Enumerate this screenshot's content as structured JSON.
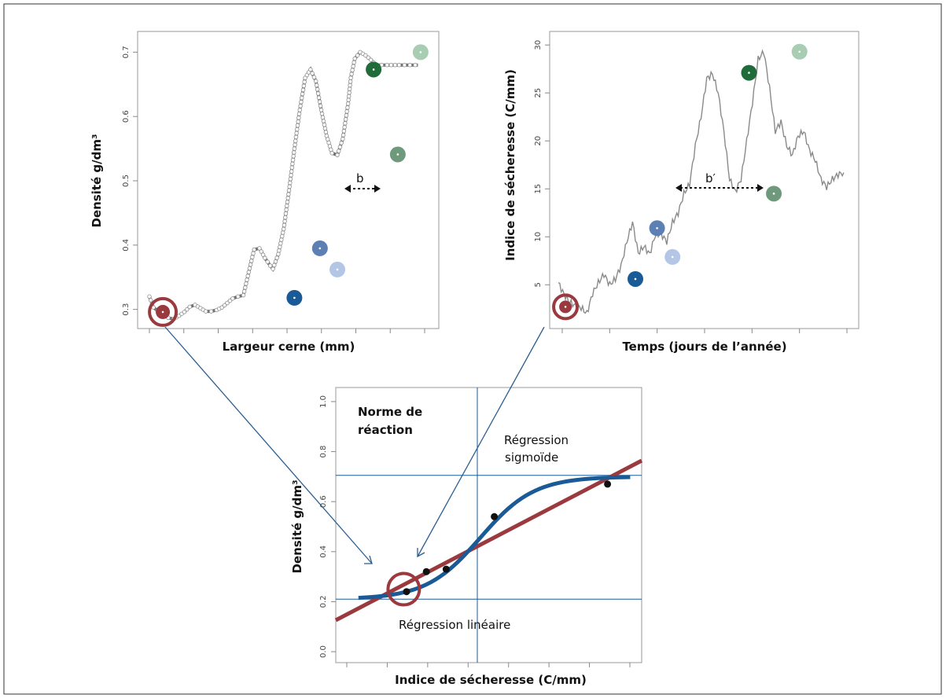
{
  "colors": {
    "red": "#9b3a3e",
    "blue_dark": "#1a5a96",
    "blue_mid": "#5c7fb4",
    "blue_light": "#b3c6e6",
    "green_dark": "#1f6b3a",
    "green_mid": "#6e9a7b",
    "green_light": "#a9cdb2",
    "curve_gray": "#7a7a7a",
    "arrow_blue": "#2c5e91"
  },
  "chart_data": [
    {
      "type": "line",
      "xlabel": "Largeur cerne (mm)",
      "ylabel": "Densité g/dm³",
      "ylim": [
        0.28,
        0.72
      ],
      "yticks": [
        "0.3",
        "0.4",
        "0.5",
        "0.6",
        "0.7"
      ],
      "x_ticks_count": 9,
      "x": [
        0,
        0.3,
        0.6,
        1,
        1.4,
        1.8,
        2.2,
        2.6,
        3,
        3.4,
        3.8,
        4.2,
        4.6,
        5,
        5.4,
        5.8,
        6.2,
        6.6,
        7,
        7.4,
        7.8,
        8.2,
        8.6,
        9,
        9.2,
        9.6,
        10,
        10.4,
        10.8,
        11.2,
        11.6,
        12,
        12.4,
        12.8,
        13.2,
        13.6,
        14,
        14.4,
        14.8,
        15,
        15.3,
        15.7,
        16.1,
        16.5,
        16.9,
        17.3,
        17.7,
        18,
        18.3,
        18.6,
        19,
        19.4,
        19.8,
        20
      ],
      "y": [
        0.32,
        0.303,
        0.298,
        0.292,
        0.287,
        0.285,
        0.29,
        0.296,
        0.304,
        0.307,
        0.302,
        0.297,
        0.297,
        0.299,
        0.303,
        0.31,
        0.317,
        0.32,
        0.322,
        0.358,
        0.393,
        0.395,
        0.38,
        0.368,
        0.363,
        0.386,
        0.425,
        0.485,
        0.55,
        0.61,
        0.66,
        0.673,
        0.655,
        0.61,
        0.57,
        0.543,
        0.54,
        0.565,
        0.62,
        0.66,
        0.69,
        0.7,
        0.695,
        0.688,
        0.68,
        0.68,
        0.68,
        0.68,
        0.68,
        0.68,
        0.68,
        0.68,
        0.68,
        0.68
      ],
      "highlight_points": [
        {
          "x": 1.0,
          "y": 0.296,
          "color": "red"
        },
        {
          "x": 10.8,
          "y": 0.318,
          "color": "blue_dark"
        },
        {
          "x": 12.7,
          "y": 0.395,
          "color": "blue_mid"
        },
        {
          "x": 14.0,
          "y": 0.362,
          "color": "blue_light"
        },
        {
          "x": 16.7,
          "y": 0.673,
          "color": "green_dark"
        },
        {
          "x": 18.5,
          "y": 0.541,
          "color": "green_mid"
        },
        {
          "x": 20.2,
          "y": 0.7,
          "color": "green_light"
        }
      ],
      "annotation": "b"
    },
    {
      "type": "line",
      "xlabel": "Temps (jours de l’année)",
      "ylabel": "Indice de sécheresse (C/mm)",
      "ylim": [
        1.5,
        31
      ],
      "yticks": [
        "5",
        "10",
        "15",
        "20",
        "25",
        "30"
      ],
      "x_ticks_count": 7,
      "x": [
        0,
        2,
        4,
        6,
        8,
        10,
        12,
        14,
        16,
        18,
        20,
        22,
        24,
        26,
        28,
        30,
        32,
        34,
        36,
        38,
        40,
        42,
        44,
        46,
        48,
        50,
        52,
        54,
        56,
        58,
        60,
        62,
        64,
        66,
        68,
        70,
        72,
        74,
        76,
        78,
        80,
        82,
        84,
        86,
        88,
        90,
        92,
        94,
        96,
        98,
        100
      ],
      "y": [
        5.2,
        4,
        3.2,
        2.8,
        2.6,
        2,
        4.1,
        5.2,
        6.1,
        5,
        5.6,
        7,
        9.5,
        11.5,
        8.3,
        9,
        8.2,
        10.2,
        10.3,
        9.5,
        11.5,
        12.5,
        14.5,
        15.5,
        19.5,
        22.5,
        26.5,
        27,
        25,
        21,
        16,
        14.7,
        16,
        20,
        24,
        28.5,
        29.3,
        25.5,
        21,
        22,
        19.5,
        18.5,
        20.5,
        21,
        19,
        18,
        16,
        15.2,
        16,
        16.5,
        16.7
      ],
      "highlight_points": [
        {
          "x": 2.5,
          "y": 2.7,
          "color": "red"
        },
        {
          "x": 27,
          "y": 5.6,
          "color": "blue_dark"
        },
        {
          "x": 34.6,
          "y": 10.9,
          "color": "blue_mid"
        },
        {
          "x": 40,
          "y": 7.9,
          "color": "blue_light"
        },
        {
          "x": 66.8,
          "y": 27.1,
          "color": "green_dark"
        },
        {
          "x": 75.5,
          "y": 14.5,
          "color": "green_mid"
        },
        {
          "x": 84.5,
          "y": 29.3,
          "color": "green_light"
        }
      ],
      "annotation": "b′"
    },
    {
      "type": "scatter",
      "xlabel": "Indice de sécheresse (C/mm)",
      "ylabel": "Densité g/dm³",
      "ylim": [
        -0.05,
        1.05
      ],
      "yticks": [
        "0.0",
        "0.2",
        "0.4",
        "0.6",
        "0.8",
        "1.0"
      ],
      "x_ticks_count": 8,
      "xlim": [
        0,
        10
      ],
      "points_x": [
        2.0,
        2.7,
        3.4,
        5.1,
        9.1
      ],
      "points_y": [
        0.24,
        0.32,
        0.33,
        0.54,
        0.67
      ],
      "circled_point": {
        "x": 1.9,
        "y": 0.25
      },
      "hlines": [
        0.21,
        0.705
      ],
      "vline": 4.5,
      "annotation_title": "Norme de réaction",
      "series": [
        {
          "name": "Régression sigmoïde",
          "color": "blue_dark"
        },
        {
          "name": "Régression linéaire",
          "color": "red"
        }
      ]
    }
  ]
}
